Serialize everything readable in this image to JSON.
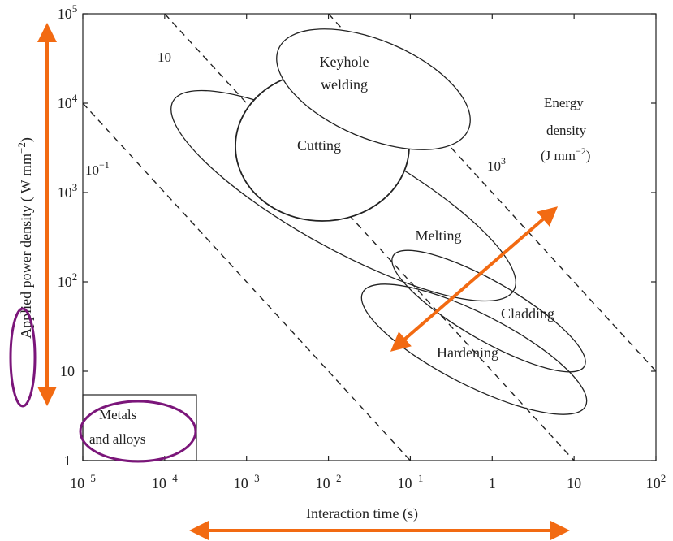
{
  "chart_data": {
    "type": "scatter",
    "x_scale": "log",
    "y_scale": "log",
    "xlabel": "Interaction time (s)",
    "ylabel": "Applied power density ( W mm",
    "ylabel_exp": "−2",
    "ylabel_tail": ")",
    "xlim": [
      1e-05,
      100
    ],
    "ylim": [
      1,
      100000
    ],
    "x_ticks": [
      {
        "value": 1e-05,
        "base": "10",
        "exp": "−5"
      },
      {
        "value": 0.0001,
        "base": "10",
        "exp": "−4"
      },
      {
        "value": 0.001,
        "base": "10",
        "exp": "−3"
      },
      {
        "value": 0.01,
        "base": "10",
        "exp": "−2"
      },
      {
        "value": 0.1,
        "base": "10",
        "exp": "−1"
      },
      {
        "value": 1,
        "base": "1",
        "exp": ""
      },
      {
        "value": 10,
        "base": "10",
        "exp": ""
      },
      {
        "value": 100,
        "base": "10",
        "exp": "2"
      }
    ],
    "y_ticks": [
      {
        "value": 1,
        "base": "1",
        "exp": ""
      },
      {
        "value": 10,
        "base": "10",
        "exp": ""
      },
      {
        "value": 100,
        "base": "10",
        "exp": "2"
      },
      {
        "value": 1000,
        "base": "10",
        "exp": "3"
      },
      {
        "value": 10000,
        "base": "10",
        "exp": "4"
      },
      {
        "value": 100000,
        "base": "10",
        "exp": "5"
      }
    ],
    "energy_lines": [
      {
        "energy": 0.1,
        "label_base": "10",
        "label_exp": "−1"
      },
      {
        "energy": 10,
        "label_base": "10",
        "label_exp": ""
      },
      {
        "energy": 1000,
        "label_base": "10",
        "label_exp": "3"
      }
    ],
    "energy_legend": [
      "Energy",
      "density",
      "(J mm",
      "−2",
      ")"
    ],
    "regions": [
      {
        "name": "Melting",
        "t_range": [
          0.0003,
          2
        ],
        "p_range": [
          70,
          20000
        ]
      },
      {
        "name": "Cutting",
        "t_range": [
          0.0015,
          0.1
        ],
        "p_range": [
          500,
          30000
        ]
      },
      {
        "name": "Keyhole welding",
        "t_range": [
          0.003,
          1.2
        ],
        "p_range": [
          2000,
          80000
        ]
      },
      {
        "name": "Cladding",
        "t_range": [
          0.15,
          20
        ],
        "p_range": [
          15,
          150
        ]
      },
      {
        "name": "Hardening",
        "t_range": [
          0.05,
          15
        ],
        "p_range": [
          5,
          100
        ]
      }
    ],
    "inset_label_lines": [
      "Metals",
      "and alloys"
    ],
    "grid": false
  },
  "colors": {
    "annotation_arrow": "#f26a12",
    "annotation_circle": "#7b167a",
    "ink": "#222222"
  }
}
